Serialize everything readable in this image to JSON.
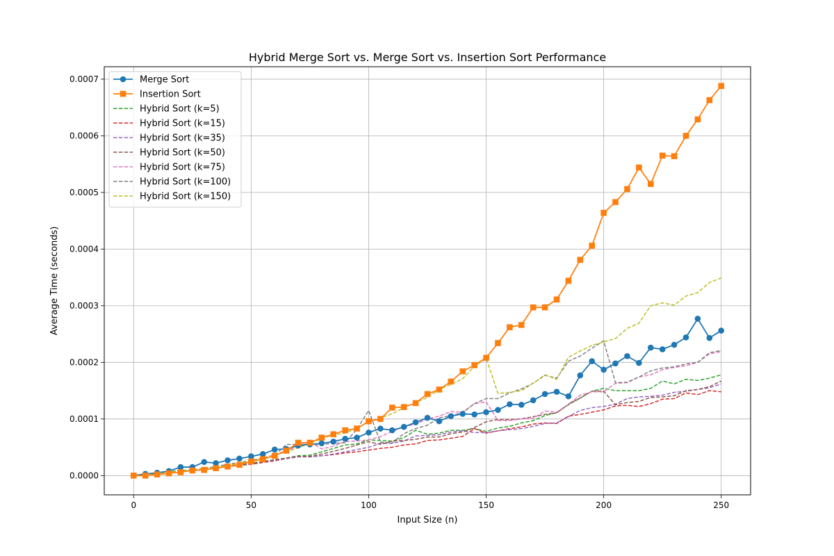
{
  "chart_data": {
    "type": "line",
    "title": "Hybrid Merge Sort vs. Merge Sort vs. Insertion Sort Performance",
    "xlabel": "Input Size (n)",
    "ylabel": "Average Time (seconds)",
    "xlim": [
      -12.5,
      262.5
    ],
    "ylim": [
      -3.4e-05,
      0.000722
    ],
    "xticks": [
      0,
      50,
      100,
      150,
      200,
      250
    ],
    "xtick_labels": [
      "0",
      "50",
      "100",
      "150",
      "200",
      "250"
    ],
    "yticks": [
      0,
      0.0001,
      0.0002,
      0.0003,
      0.0004,
      0.0005,
      0.0006,
      0.0007
    ],
    "ytick_labels": [
      "0.0000",
      "0.0001",
      "0.0002",
      "0.0003",
      "0.0004",
      "0.0005",
      "0.0006",
      "0.0007"
    ],
    "grid": true,
    "legend_position": "top-left",
    "x": [
      0,
      5,
      10,
      15,
      20,
      25,
      30,
      35,
      40,
      45,
      50,
      55,
      60,
      65,
      70,
      75,
      80,
      85,
      90,
      95,
      100,
      105,
      110,
      115,
      120,
      125,
      130,
      135,
      140,
      145,
      150,
      155,
      160,
      165,
      170,
      175,
      180,
      185,
      190,
      195,
      200,
      205,
      210,
      215,
      220,
      225,
      230,
      235,
      240,
      245,
      250
    ],
    "series": [
      {
        "name": "Merge Sort",
        "color": "#1f77b4",
        "style": "solid",
        "marker": "circle",
        "values": [
          0,
          3e-06,
          5e-06,
          8e-06,
          1.5e-05,
          1.5e-05,
          2.4e-05,
          2.2e-05,
          2.7e-05,
          3e-05,
          3.4e-05,
          3.8e-05,
          4.6e-05,
          4.7e-05,
          5.3e-05,
          5.5e-05,
          5.7e-05,
          6e-05,
          6.5e-05,
          6.7e-05,
          7.6e-05,
          8.3e-05,
          8e-05,
          8.6e-05,
          9.4e-05,
          0.000102,
          9.6e-05,
          0.000105,
          0.000109,
          0.000108,
          0.000112,
          0.000116,
          0.000126,
          0.000125,
          0.000133,
          0.000144,
          0.000148,
          0.00014,
          0.000177,
          0.000202,
          0.000187,
          0.000198,
          0.000211,
          0.000199,
          0.000226,
          0.000223,
          0.000231,
          0.000244,
          0.000277,
          0.000243,
          0.000256
        ]
      },
      {
        "name": "Insertion Sort",
        "color": "#ff7f0e",
        "style": "solid",
        "marker": "square",
        "values": [
          0,
          0,
          2e-06,
          4e-06,
          6e-06,
          9e-06,
          1e-05,
          1.3e-05,
          1.6e-05,
          1.9e-05,
          2.5e-05,
          2.9e-05,
          3.5e-05,
          4.4e-05,
          5.8e-05,
          5.8e-05,
          6.7e-05,
          7.3e-05,
          8e-05,
          8.3e-05,
          9.6e-05,
          0.0001,
          0.00012,
          0.000121,
          0.000128,
          0.000144,
          0.000152,
          0.000166,
          0.000184,
          0.000195,
          0.000208,
          0.000234,
          0.000262,
          0.000266,
          0.000297,
          0.000297,
          0.000311,
          0.000344,
          0.000381,
          0.000406,
          0.000464,
          0.000483,
          0.000506,
          0.000544,
          0.000515,
          0.000565,
          0.000564,
          0.0006,
          0.000629,
          0.000663,
          0.000688
        ]
      },
      {
        "name": "Hybrid Sort (k=5)",
        "color": "#2ca02c",
        "style": "dashed",
        "values": [
          0,
          3e-06,
          4e-06,
          7e-06,
          9e-06,
          1e-05,
          1.2e-05,
          1.4e-05,
          1.7e-05,
          2e-05,
          2.2e-05,
          2.5e-05,
          2.8e-05,
          3.1e-05,
          3.5e-05,
          3.6e-05,
          4.2e-05,
          4.8e-05,
          5.4e-05,
          5.6e-05,
          6.3e-05,
          6.2e-05,
          6.1e-05,
          6.7e-05,
          8e-05,
          7.3e-05,
          7.5e-05,
          8e-05,
          8e-05,
          8.3e-05,
          7.8e-05,
          8.4e-05,
          8.7e-05,
          9.3e-05,
          9.7e-05,
          0.000106,
          0.000111,
          0.000125,
          0.000137,
          0.000149,
          0.000154,
          0.00015,
          0.00015,
          0.00015,
          0.000154,
          0.000167,
          0.000162,
          0.00017,
          0.000168,
          0.000172,
          0.000178
        ]
      },
      {
        "name": "Hybrid Sort (k=15)",
        "color": "#d62728",
        "style": "dashed",
        "values": [
          0,
          2e-06,
          4e-06,
          6e-06,
          8e-06,
          1e-05,
          1.2e-05,
          1.4e-05,
          1.6e-05,
          1.8e-05,
          2e-05,
          2.3e-05,
          2.6e-05,
          3e-05,
          3.4e-05,
          3.3e-05,
          3.5e-05,
          3.7e-05,
          4e-05,
          4.2e-05,
          4.5e-05,
          4.8e-05,
          5e-05,
          5.4e-05,
          5.6e-05,
          6.2e-05,
          6.3e-05,
          6.6e-05,
          6.9e-05,
          8.3e-05,
          7.5e-05,
          7.9e-05,
          8.3e-05,
          8.6e-05,
          9.1e-05,
          9.3e-05,
          9.2e-05,
          0.000105,
          0.000108,
          0.000112,
          0.000116,
          0.000123,
          0.000124,
          0.000122,
          0.000127,
          0.000135,
          0.000136,
          0.000146,
          0.000143,
          0.00015,
          0.000148
        ]
      },
      {
        "name": "Hybrid Sort (k=35)",
        "color": "#9467bd",
        "style": "dashed",
        "values": [
          0,
          2e-06,
          4e-06,
          6e-06,
          8e-06,
          1e-05,
          1.2e-05,
          1.4e-05,
          1.6e-05,
          1.9e-05,
          2.1e-05,
          2.4e-05,
          2.7e-05,
          3e-05,
          3.3e-05,
          3.3e-05,
          3.5e-05,
          3.8e-05,
          4.2e-05,
          4.6e-05,
          5e-05,
          5.7e-05,
          5.7e-05,
          6.1e-05,
          7e-05,
          7.1e-05,
          7.2e-05,
          7.7e-05,
          7.9e-05,
          7.6e-05,
          7.6e-05,
          7.9e-05,
          8.1e-05,
          8.3e-05,
          8.7e-05,
          9.2e-05,
          9.3e-05,
          0.000104,
          0.000115,
          0.00012,
          0.000122,
          0.000126,
          0.000136,
          0.000139,
          0.00014,
          0.000142,
          0.000147,
          0.000149,
          0.000152,
          0.000155,
          0.000162
        ]
      },
      {
        "name": "Hybrid Sort (k=50)",
        "color": "#8c564b",
        "style": "dashed",
        "values": [
          0,
          2e-06,
          4e-06,
          6e-06,
          8e-06,
          1e-05,
          1.2e-05,
          1.4e-05,
          1.6e-05,
          1.8e-05,
          2.1e-05,
          2.4e-05,
          2.8e-05,
          3.1e-05,
          3.4e-05,
          3.4e-05,
          3.8e-05,
          4.3e-05,
          4.8e-05,
          5.4e-05,
          6e-05,
          5.5e-05,
          6.1e-05,
          6.2e-05,
          6.4e-05,
          6.8e-05,
          6.8e-05,
          7.4e-05,
          7.7e-05,
          8.5e-05,
          9.5e-05,
          9.9e-05,
          9.9e-05,
          0.0001,
          0.000104,
          0.000108,
          0.000111,
          0.000126,
          0.000137,
          0.000149,
          0.000149,
          0.000125,
          0.000129,
          0.000131,
          0.000138,
          0.000139,
          0.000141,
          0.00015,
          0.000152,
          0.000157,
          0.000167
        ]
      },
      {
        "name": "Hybrid Sort (k=75)",
        "color": "#e377c2",
        "style": "dashed",
        "values": [
          0,
          2e-06,
          4e-06,
          6e-06,
          8e-06,
          1e-05,
          1.2e-05,
          1.5e-05,
          1.8e-05,
          2.1e-05,
          2.6e-05,
          3.1e-05,
          3.7e-05,
          4.4e-05,
          5.2e-05,
          6e-05,
          4.7e-05,
          5.2e-05,
          6e-05,
          6.1e-05,
          6.3e-05,
          6.9e-05,
          7.8e-05,
          8.6e-05,
          9.1e-05,
          0.0001,
          0.000105,
          0.000113,
          0.000112,
          0.000127,
          0.00013,
          9.7e-05,
          9.7e-05,
          0.0001,
          0.000101,
          0.000114,
          0.000112,
          0.000126,
          0.000142,
          0.000148,
          0.000148,
          0.000163,
          0.000164,
          0.000174,
          0.000178,
          0.000187,
          0.000191,
          0.000194,
          0.0002,
          0.000215,
          0.000219
        ]
      },
      {
        "name": "Hybrid Sort (k=100)",
        "color": "#7f7f7f",
        "style": "dashed",
        "values": [
          0,
          2e-06,
          4e-06,
          6e-06,
          8e-06,
          1e-05,
          1.3e-05,
          1.6e-05,
          2e-05,
          2.3e-05,
          2.7e-05,
          3.1e-05,
          3.6e-05,
          5.5e-05,
          5.5e-05,
          5.5e-05,
          5.5e-05,
          5.7e-05,
          5.8e-05,
          8.2e-05,
          0.000115,
          5.9e-05,
          5.8e-05,
          7.4e-05,
          8.3e-05,
          8.9e-05,
          0.000102,
          0.000106,
          0.000111,
          0.000127,
          0.000136,
          0.000136,
          0.000146,
          0.000153,
          0.000163,
          0.000177,
          0.000172,
          0.000202,
          0.000211,
          0.000225,
          0.000238,
          0.000164,
          0.000165,
          0.000174,
          0.000185,
          0.00019,
          0.000192,
          0.000197,
          0.0002,
          0.000217,
          0.000221
        ]
      },
      {
        "name": "Hybrid Sort (k=150)",
        "color": "#bcbd22",
        "style": "dashed",
        "values": [
          0,
          2e-06,
          4e-06,
          6e-06,
          8e-06,
          1e-05,
          1.2e-05,
          1.5e-05,
          1.8e-05,
          2.2e-05,
          2.6e-05,
          3.1e-05,
          3.6e-05,
          4.2e-05,
          4.9e-05,
          5.7e-05,
          6.5e-05,
          7.2e-05,
          7.5e-05,
          8.4e-05,
          9.5e-05,
          0.000102,
          0.000109,
          0.00012,
          0.000129,
          0.000138,
          0.000152,
          0.000161,
          0.000171,
          0.000193,
          0.000207,
          0.000145,
          0.000147,
          0.00015,
          0.000163,
          0.000178,
          0.00017,
          0.000209,
          0.00022,
          0.00023,
          0.000236,
          0.000242,
          0.00026,
          0.000269,
          0.0003,
          0.000305,
          0.000301,
          0.000317,
          0.000323,
          0.000341,
          0.000349
        ]
      }
    ]
  }
}
